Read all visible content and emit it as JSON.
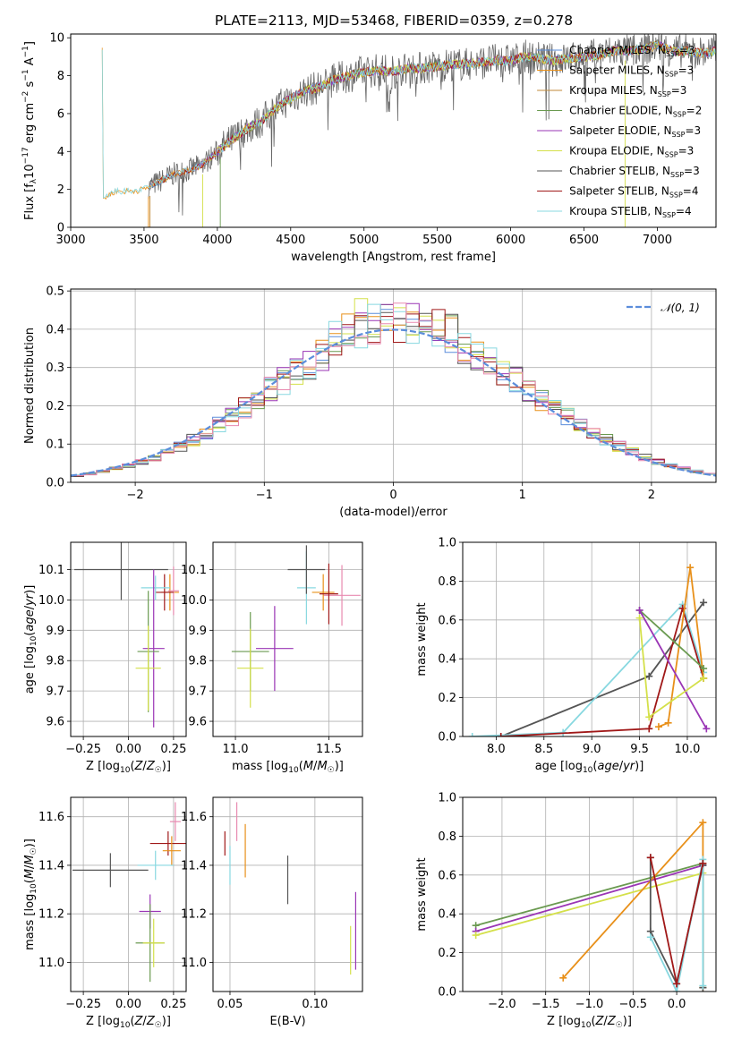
{
  "title": "PLATE=2113, MJD=53468, FIBERID=0359, z=0.278",
  "colors": [
    "#5b8ddb",
    "#e8901a",
    "#c08a3a",
    "#6a9a50",
    "#9a35b5",
    "#d4e04a",
    "#555555",
    "#a01818",
    "#88d8e0",
    "#e88ab0",
    "#d08080"
  ],
  "chart_data": [
    {
      "type": "line",
      "id": "spectrum",
      "xlabel": "wavelength [Angstrom, rest frame]",
      "ylabel": "Flux [f_λ 10^-17 erg cm^-2 s^-1 A^-1]",
      "xlim": [
        3000,
        7400
      ],
      "ylim": [
        0,
        10.2
      ],
      "xticks": [
        "3000",
        "3500",
        "4000",
        "4500",
        "5000",
        "5500",
        "6000",
        "6500",
        "7000"
      ],
      "yticks": [
        "0",
        "2",
        "4",
        "6",
        "8",
        "10"
      ],
      "grid": false,
      "legend": "top-right",
      "series": [
        {
          "name": "Chabrier MILES, N_SSP=3"
        },
        {
          "name": "Salpeter MILES, N_SSP=3"
        },
        {
          "name": "Kroupa MILES, N_SSP=3"
        },
        {
          "name": "Chabrier ELODIE, N_SSP=2"
        },
        {
          "name": "Salpeter ELODIE, N_SSP=3"
        },
        {
          "name": "Kroupa ELODIE, N_SSP=3"
        },
        {
          "name": "Chabrier STELIB, N_SSP=3"
        },
        {
          "name": "Salpeter STELIB, N_SSP=4"
        },
        {
          "name": "Kroupa STELIB, N_SSP=4"
        }
      ],
      "envelope": [
        [
          3220,
          1.5
        ],
        [
          3300,
          1.9
        ],
        [
          3400,
          1.9
        ],
        [
          3500,
          2.0
        ],
        [
          3600,
          2.4
        ],
        [
          3700,
          2.8
        ],
        [
          3800,
          3.0
        ],
        [
          3900,
          3.3
        ],
        [
          4000,
          4.0
        ],
        [
          4100,
          4.6
        ],
        [
          4200,
          5.2
        ],
        [
          4300,
          5.6
        ],
        [
          4400,
          6.3
        ],
        [
          4500,
          6.8
        ],
        [
          4600,
          7.2
        ],
        [
          4700,
          7.4
        ],
        [
          4800,
          7.8
        ],
        [
          4900,
          8.0
        ],
        [
          5000,
          8.2
        ],
        [
          5100,
          8.3
        ],
        [
          5200,
          8.2
        ],
        [
          5300,
          8.4
        ],
        [
          5400,
          8.4
        ],
        [
          5500,
          8.5
        ],
        [
          5600,
          8.6
        ],
        [
          5700,
          8.6
        ],
        [
          5800,
          8.7
        ],
        [
          5900,
          8.8
        ],
        [
          6000,
          8.8
        ],
        [
          6100,
          9.0
        ],
        [
          6200,
          8.9
        ],
        [
          6300,
          8.8
        ],
        [
          6400,
          8.9
        ],
        [
          6500,
          9.0
        ],
        [
          6600,
          9.1
        ],
        [
          6700,
          9.3
        ],
        [
          6800,
          9.3
        ],
        [
          6900,
          9.4
        ],
        [
          7000,
          9.6
        ],
        [
          7100,
          9.3
        ],
        [
          7200,
          9.3
        ],
        [
          7300,
          9.2
        ],
        [
          7400,
          9.3
        ]
      ]
    },
    {
      "type": "bar",
      "id": "residuals",
      "xlabel": "(data-model)/error",
      "ylabel": "Normed distribution",
      "xlim": [
        -2.5,
        2.5
      ],
      "ylim": [
        0,
        0.505
      ],
      "xticks": [
        "−2",
        "−1",
        "0",
        "1",
        "2"
      ],
      "yticks": [
        "0.0",
        "0.1",
        "0.2",
        "0.3",
        "0.4",
        "0.5"
      ],
      "grid": true,
      "legend": "top-right",
      "curve_label": "N(0,1)",
      "bin_width": 0.1
    },
    {
      "type": "scatter",
      "id": "z-age",
      "xlabel": "Z [log10(Z/Z☉)]",
      "ylabel": "age [log10(age/yr)]",
      "xlim": [
        -0.32,
        0.32
      ],
      "ylim": [
        9.55,
        10.19
      ],
      "xticks": [
        "−0.25",
        "0.00",
        "0.25"
      ],
      "yticks": [
        "9.6",
        "9.7",
        "9.8",
        "9.9",
        "10.0",
        "10.1"
      ],
      "points": [
        {
          "x": 0.23,
          "y": 10.025,
          "xerr": 0.05,
          "yerr": 0.06,
          "c": 1
        },
        {
          "x": 0.25,
          "y": 10.03,
          "xerr": 0.03,
          "yerr": 0.08,
          "c": 9
        },
        {
          "x": 0.2,
          "y": 10.025,
          "xerr": 0.05,
          "yerr": 0.06,
          "c": 7
        },
        {
          "x": 0.15,
          "y": 10.04,
          "xerr": 0.08,
          "yerr": 0.04,
          "c": 8
        },
        {
          "x": -0.04,
          "y": 10.1,
          "xerr": 0.26,
          "yerr": 0.1,
          "c": 6
        },
        {
          "x": 0.14,
          "y": 9.84,
          "xerr": 0.06,
          "yerr": 0.26,
          "c": 4
        },
        {
          "x": 0.11,
          "y": 9.83,
          "xerr": 0.06,
          "yerr": 0.2,
          "c": 3
        },
        {
          "x": 0.11,
          "y": 9.775,
          "xerr": 0.07,
          "yerr": 0.14,
          "c": 5
        }
      ]
    },
    {
      "type": "scatter",
      "id": "mass-age",
      "xlabel": "mass [log10(M/M☉)]",
      "ylabel": "",
      "xlim": [
        10.88,
        11.68
      ],
      "ylim": [
        9.55,
        10.19
      ],
      "xticks": [
        "11.0",
        "11.5"
      ],
      "yticks": [
        "9.6",
        "9.7",
        "9.8",
        "9.9",
        "10.0",
        "10.1"
      ],
      "points": [
        {
          "x": 11.57,
          "y": 10.015,
          "xerr": 0.1,
          "yerr": 0.1,
          "c": 9
        },
        {
          "x": 11.47,
          "y": 10.025,
          "xerr": 0.06,
          "yerr": 0.06,
          "c": 1
        },
        {
          "x": 11.5,
          "y": 10.02,
          "xerr": 0.05,
          "yerr": 0.1,
          "c": 7
        },
        {
          "x": 11.38,
          "y": 10.04,
          "xerr": 0.05,
          "yerr": 0.12,
          "c": 8
        },
        {
          "x": 11.38,
          "y": 10.1,
          "xerr": 0.1,
          "yerr": 0.08,
          "c": 6
        },
        {
          "x": 11.21,
          "y": 9.84,
          "xerr": 0.1,
          "yerr": 0.14,
          "c": 4
        },
        {
          "x": 11.08,
          "y": 9.83,
          "xerr": 0.1,
          "yerr": 0.13,
          "c": 3
        },
        {
          "x": 11.08,
          "y": 9.775,
          "xerr": 0.07,
          "yerr": 0.13,
          "c": 5
        }
      ]
    },
    {
      "type": "line",
      "id": "age-weight",
      "xlabel": "age [log10(age/yr)]",
      "ylabel": "mass weight",
      "xlim": [
        7.65,
        10.3
      ],
      "ylim": [
        0,
        1
      ],
      "xticks": [
        "8.0",
        "8.5",
        "9.0",
        "9.5",
        "10.0"
      ],
      "yticks": [
        "0.0",
        "0.2",
        "0.4",
        "0.6",
        "0.8",
        "1.0"
      ],
      "series": [
        {
          "c": 6,
          "pts": [
            [
              8.05,
              0.0
            ],
            [
              9.6,
              0.31
            ],
            [
              10.17,
              0.69
            ]
          ]
        },
        {
          "c": 8,
          "pts": [
            [
              7.75,
              0.0
            ],
            [
              8.7,
              0.02
            ],
            [
              9.95,
              0.68
            ],
            [
              10.17,
              0.33
            ]
          ]
        },
        {
          "c": 7,
          "pts": [
            [
              8.05,
              0.0
            ],
            [
              9.6,
              0.04
            ],
            [
              9.95,
              0.66
            ],
            [
              10.17,
              0.3
            ]
          ]
        },
        {
          "c": 1,
          "pts": [
            [
              9.7,
              0.05
            ],
            [
              9.8,
              0.07
            ],
            [
              10.03,
              0.87
            ],
            [
              10.17,
              0.3
            ]
          ]
        },
        {
          "c": 3,
          "pts": [
            [
              9.5,
              0.65
            ],
            [
              10.17,
              0.35
            ]
          ]
        },
        {
          "c": 4,
          "pts": [
            [
              9.5,
              0.65
            ],
            [
              10.2,
              0.04
            ]
          ]
        },
        {
          "c": 5,
          "pts": [
            [
              9.5,
              0.61
            ],
            [
              9.6,
              0.1
            ],
            [
              10.17,
              0.3
            ]
          ]
        }
      ]
    },
    {
      "type": "scatter",
      "id": "z-mass",
      "xlabel": "Z [log10(Z/Z☉)]",
      "ylabel": "mass [log10(M/M☉)]",
      "xlim": [
        -0.32,
        0.32
      ],
      "ylim": [
        10.88,
        11.68
      ],
      "xticks": [
        "−0.25",
        "0.00",
        "0.25"
      ],
      "yticks": [
        "11.0",
        "11.2",
        "11.4",
        "11.6"
      ],
      "points": [
        {
          "x": 0.26,
          "y": 11.58,
          "xerr": 0.03,
          "yerr": 0.08,
          "c": 9
        },
        {
          "x": 0.22,
          "y": 11.49,
          "xerr": 0.1,
          "yerr": 0.05,
          "c": 7
        },
        {
          "x": 0.24,
          "y": 11.46,
          "xerr": 0.05,
          "yerr": 0.06,
          "c": 1
        },
        {
          "x": 0.15,
          "y": 11.4,
          "xerr": 0.1,
          "yerr": 0.06,
          "c": 8
        },
        {
          "x": -0.1,
          "y": 11.38,
          "xerr": 0.21,
          "yerr": 0.07,
          "c": 6
        },
        {
          "x": 0.12,
          "y": 11.21,
          "xerr": 0.06,
          "yerr": 0.07,
          "c": 4
        },
        {
          "x": 0.12,
          "y": 11.08,
          "xerr": 0.08,
          "yerr": 0.16,
          "c": 3
        },
        {
          "x": 0.14,
          "y": 11.08,
          "xerr": 0.06,
          "yerr": 0.1,
          "c": 5
        }
      ]
    },
    {
      "type": "scatter",
      "id": "ebv-mass",
      "xlabel": "E(B-V)",
      "ylabel": "",
      "xlim": [
        0.04,
        0.128
      ],
      "ylim": [
        10.88,
        11.68
      ],
      "xticks": [
        "0.05",
        "0.10"
      ],
      "yticks": [
        "11.0",
        "11.2",
        "11.4",
        "11.6"
      ],
      "points": [
        {
          "x": 0.054,
          "y": 11.58,
          "xerr": 0,
          "yerr": 0.08,
          "c": 9
        },
        {
          "x": 0.047,
          "y": 11.49,
          "xerr": 0,
          "yerr": 0.05,
          "c": 7
        },
        {
          "x": 0.059,
          "y": 11.46,
          "xerr": 0,
          "yerr": 0.11,
          "c": 1
        },
        {
          "x": 0.05,
          "y": 11.4,
          "xerr": 0,
          "yerr": 0.08,
          "c": 8
        },
        {
          "x": 0.084,
          "y": 11.34,
          "xerr": 0,
          "yerr": 0.1,
          "c": 6
        },
        {
          "x": 0.124,
          "y": 11.13,
          "xerr": 0,
          "yerr": 0.16,
          "c": 4
        },
        {
          "x": 0.121,
          "y": 11.05,
          "xerr": 0,
          "yerr": 0.1,
          "c": 5
        }
      ]
    },
    {
      "type": "line",
      "id": "z-weight",
      "xlabel": "Z [log10(Z/Z☉)]",
      "ylabel": "mass weight",
      "xlim": [
        -2.45,
        0.45
      ],
      "ylim": [
        0,
        1
      ],
      "xticks": [
        "−2.0",
        "−1.5",
        "−1.0",
        "−0.5",
        "0.0"
      ],
      "yticks": [
        "0.0",
        "0.2",
        "0.4",
        "0.6",
        "0.8",
        "1.0"
      ],
      "series": [
        {
          "c": 3,
          "pts": [
            [
              -2.3,
              0.34
            ],
            [
              0.3,
              0.66
            ]
          ]
        },
        {
          "c": 4,
          "pts": [
            [
              -2.3,
              0.31
            ],
            [
              0.3,
              0.65
            ]
          ]
        },
        {
          "c": 5,
          "pts": [
            [
              -2.3,
              0.29
            ],
            [
              0.3,
              0.61
            ]
          ]
        },
        {
          "c": 1,
          "pts": [
            [
              -1.3,
              0.07
            ],
            [
              0.3,
              0.87
            ],
            [
              0.3,
              0.02
            ]
          ]
        },
        {
          "c": 6,
          "pts": [
            [
              -0.3,
              0.69
            ],
            [
              -0.3,
              0.31
            ],
            [
              0.0,
              0.04
            ],
            [
              0.3,
              0.65
            ],
            [
              0.3,
              0.02
            ]
          ]
        },
        {
          "c": 8,
          "pts": [
            [
              -0.3,
              0.28
            ],
            [
              0.0,
              0.0
            ],
            [
              0.3,
              0.68
            ],
            [
              0.3,
              0.03
            ]
          ]
        },
        {
          "c": 7,
          "pts": [
            [
              -0.3,
              0.69
            ],
            [
              0.0,
              0.04
            ],
            [
              0.3,
              0.66
            ]
          ]
        }
      ]
    }
  ]
}
